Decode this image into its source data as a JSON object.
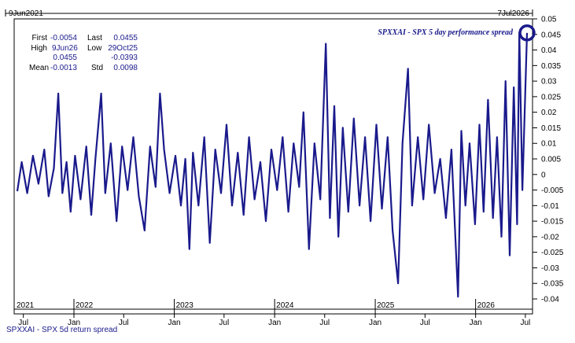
{
  "chart_data": {
    "type": "line",
    "title": "SPXXAI - SPX 5 day performance spread",
    "footer": "SPXXAI - SPX 5d return spread",
    "range_start_label": "9Jun2021",
    "range_end_label": "7Jul2026",
    "x_start": "2021-06-09",
    "x_end": "2026-07-07",
    "ylim": [
      -0.04,
      0.05
    ],
    "y_ticks": [
      "0.05",
      "0.045",
      "0.04",
      "0.035",
      "0.03",
      "0.025",
      "0.02",
      "0.015",
      "0.01",
      "0.005",
      "0",
      "-0.005",
      "-0.01",
      "-0.015",
      "-0.02",
      "-0.025",
      "-0.03",
      "-0.035",
      "-0.04"
    ],
    "year_labels": [
      "2021",
      "2022",
      "2023",
      "2024",
      "2025",
      "2026"
    ],
    "month_labels": [
      "Jul",
      "Jan",
      "Jul",
      "Jan",
      "Jul",
      "Jan",
      "Jul",
      "Jan",
      "Jul",
      "Jan",
      "Jul"
    ],
    "stats": {
      "first_label": "First",
      "first_value": "-0.0054",
      "last_label": "Last",
      "last_value": "0.0455",
      "high_label": "High",
      "high_date": "9Jun26",
      "high_value": "0.0455",
      "low_label": "Low",
      "low_date": "29Oct25",
      "low_value": "-0.0393",
      "mean_label": "Mean",
      "mean_value": "-0.0013",
      "std_label": "Std",
      "std_value": "0.0098"
    },
    "series": [
      {
        "color": "#1a1a8c",
        "points": [
          [
            "2021-06-09",
            -0.0054
          ],
          [
            "2021-06-25",
            0.004
          ],
          [
            "2021-07-15",
            -0.006
          ],
          [
            "2021-08-05",
            0.006
          ],
          [
            "2021-08-25",
            -0.003
          ],
          [
            "2021-09-15",
            0.008
          ],
          [
            "2021-10-01",
            -0.007
          ],
          [
            "2021-10-20",
            0.002
          ],
          [
            "2021-11-05",
            0.026
          ],
          [
            "2021-11-20",
            -0.006
          ],
          [
            "2021-12-05",
            0.004
          ],
          [
            "2021-12-20",
            -0.012
          ],
          [
            "2022-01-05",
            0.006
          ],
          [
            "2022-01-25",
            -0.008
          ],
          [
            "2022-02-15",
            0.009
          ],
          [
            "2022-03-05",
            -0.013
          ],
          [
            "2022-03-20",
            0.005
          ],
          [
            "2022-04-10",
            0.026
          ],
          [
            "2022-04-25",
            -0.006
          ],
          [
            "2022-05-15",
            0.01
          ],
          [
            "2022-06-05",
            -0.015
          ],
          [
            "2022-06-25",
            0.009
          ],
          [
            "2022-07-15",
            -0.005
          ],
          [
            "2022-08-05",
            0.012
          ],
          [
            "2022-08-25",
            -0.007
          ],
          [
            "2022-09-15",
            -0.018
          ],
          [
            "2022-10-05",
            0.009
          ],
          [
            "2022-10-25",
            -0.004
          ],
          [
            "2022-11-10",
            0.026
          ],
          [
            "2022-11-25",
            0.008
          ],
          [
            "2022-12-15",
            -0.006
          ],
          [
            "2023-01-05",
            0.006
          ],
          [
            "2023-01-25",
            -0.01
          ],
          [
            "2023-02-10",
            0.005
          ],
          [
            "2023-02-25",
            -0.024
          ],
          [
            "2023-03-10",
            0.007
          ],
          [
            "2023-03-30",
            -0.01
          ],
          [
            "2023-04-20",
            0.012
          ],
          [
            "2023-05-10",
            -0.022
          ],
          [
            "2023-05-30",
            0.008
          ],
          [
            "2023-06-20",
            -0.006
          ],
          [
            "2023-07-10",
            0.016
          ],
          [
            "2023-07-30",
            -0.01
          ],
          [
            "2023-08-20",
            0.007
          ],
          [
            "2023-09-10",
            -0.013
          ],
          [
            "2023-09-30",
            0.012
          ],
          [
            "2023-10-20",
            -0.008
          ],
          [
            "2023-11-10",
            0.004
          ],
          [
            "2023-11-30",
            -0.015
          ],
          [
            "2023-12-20",
            0.008
          ],
          [
            "2024-01-10",
            -0.005
          ],
          [
            "2024-01-30",
            0.012
          ],
          [
            "2024-02-20",
            -0.012
          ],
          [
            "2024-03-10",
            0.01
          ],
          [
            "2024-03-30",
            -0.004
          ],
          [
            "2024-04-15",
            0.02
          ],
          [
            "2024-05-05",
            -0.024
          ],
          [
            "2024-05-25",
            0.01
          ],
          [
            "2024-06-15",
            -0.008
          ],
          [
            "2024-07-05",
            0.042
          ],
          [
            "2024-07-20",
            -0.014
          ],
          [
            "2024-08-05",
            0.022
          ],
          [
            "2024-08-20",
            -0.02
          ],
          [
            "2024-09-05",
            0.015
          ],
          [
            "2024-09-25",
            -0.012
          ],
          [
            "2024-10-15",
            0.018
          ],
          [
            "2024-11-05",
            -0.01
          ],
          [
            "2024-11-25",
            0.012
          ],
          [
            "2024-12-15",
            -0.015
          ],
          [
            "2025-01-05",
            0.016
          ],
          [
            "2025-01-25",
            -0.011
          ],
          [
            "2025-02-15",
            0.012
          ],
          [
            "2025-03-05",
            -0.018
          ],
          [
            "2025-03-25",
            -0.035
          ],
          [
            "2025-04-10",
            0.01
          ],
          [
            "2025-04-30",
            0.034
          ],
          [
            "2025-05-15",
            -0.01
          ],
          [
            "2025-06-05",
            0.012
          ],
          [
            "2025-06-25",
            -0.008
          ],
          [
            "2025-07-15",
            0.016
          ],
          [
            "2025-08-05",
            -0.006
          ],
          [
            "2025-08-25",
            0.005
          ],
          [
            "2025-09-15",
            -0.014
          ],
          [
            "2025-10-05",
            0.008
          ],
          [
            "2025-10-29",
            -0.0393
          ],
          [
            "2025-11-10",
            0.014
          ],
          [
            "2025-11-25",
            -0.01
          ],
          [
            "2025-12-10",
            0.01
          ],
          [
            "2025-12-30",
            -0.016
          ],
          [
            "2026-01-15",
            0.016
          ],
          [
            "2026-01-30",
            -0.012
          ],
          [
            "2026-02-15",
            0.024
          ],
          [
            "2026-03-05",
            -0.014
          ],
          [
            "2026-03-20",
            0.012
          ],
          [
            "2026-04-05",
            -0.02
          ],
          [
            "2026-04-20",
            0.03
          ],
          [
            "2026-05-05",
            -0.026
          ],
          [
            "2026-05-20",
            0.028
          ],
          [
            "2026-06-01",
            -0.016
          ],
          [
            "2026-06-09",
            0.0455
          ],
          [
            "2026-06-20",
            -0.005
          ],
          [
            "2026-07-07",
            0.0455
          ]
        ]
      }
    ]
  }
}
